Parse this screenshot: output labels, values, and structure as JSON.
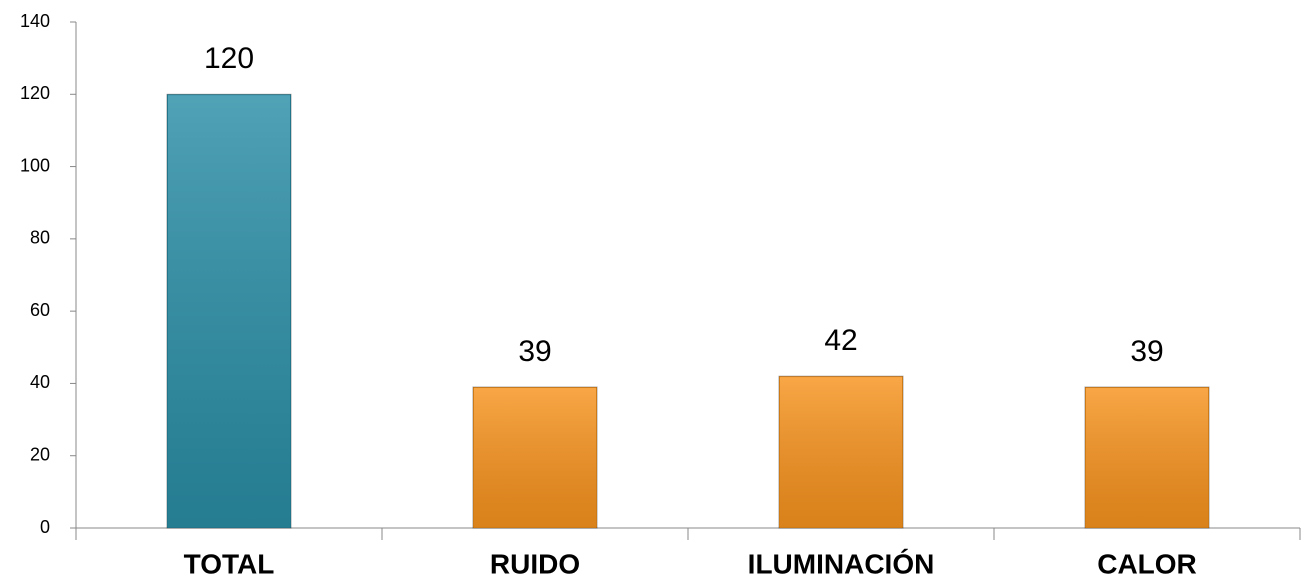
{
  "chart_data": {
    "type": "bar",
    "categories": [
      "TOTAL",
      "RUIDO",
      "ILUMINACIÓN",
      "CALOR"
    ],
    "values": [
      120,
      39,
      42,
      39
    ],
    "colors": [
      "#2a8ea6",
      "#f7931e",
      "#f7931e",
      "#f7931e"
    ],
    "ylim": [
      0,
      140
    ],
    "yticks": [
      0,
      20,
      40,
      60,
      80,
      100,
      120,
      140
    ],
    "grid": false
  }
}
